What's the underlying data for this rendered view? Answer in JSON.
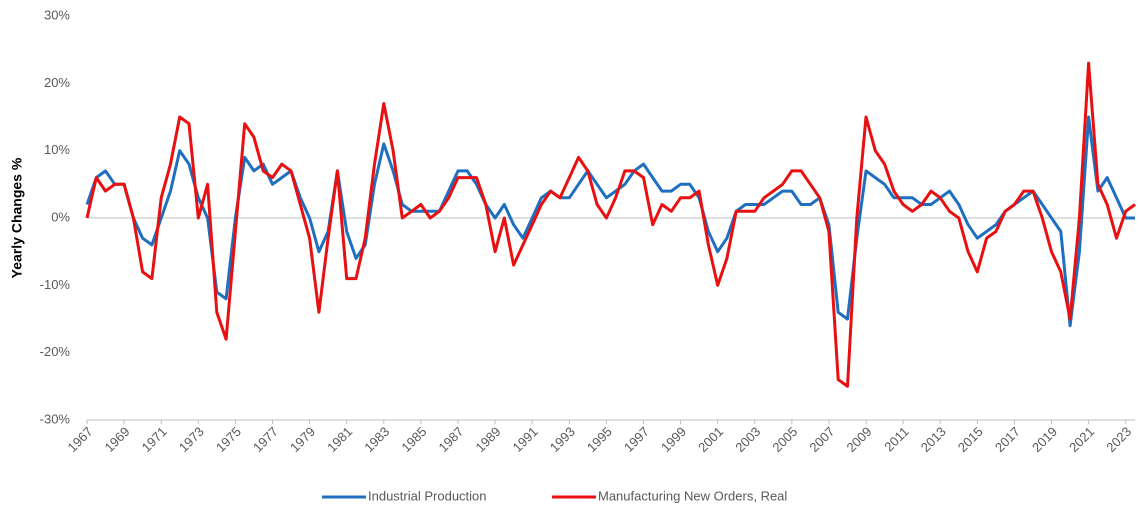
{
  "chart_data": {
    "type": "line",
    "y_label": "Yearly Changes %",
    "x": [
      1967,
      1967.5,
      1968,
      1968.5,
      1969,
      1969.5,
      1970,
      1970.5,
      1971,
      1971.5,
      1972,
      1972.5,
      1973,
      1973.5,
      1974,
      1974.5,
      1975,
      1975.5,
      1976,
      1976.5,
      1977,
      1977.5,
      1978,
      1978.5,
      1979,
      1979.5,
      1980,
      1980.5,
      1981,
      1981.5,
      1982,
      1982.5,
      1983,
      1983.5,
      1984,
      1984.5,
      1985,
      1985.5,
      1986,
      1986.5,
      1987,
      1987.5,
      1988,
      1988.5,
      1989,
      1989.5,
      1990,
      1990.5,
      1991,
      1991.5,
      1992,
      1992.5,
      1993,
      1993.5,
      1994,
      1994.5,
      1995,
      1995.5,
      1996,
      1996.5,
      1997,
      1997.5,
      1998,
      1998.5,
      1999,
      1999.5,
      2000,
      2000.5,
      2001,
      2001.5,
      2002,
      2002.5,
      2003,
      2003.5,
      2004,
      2004.5,
      2005,
      2005.5,
      2006,
      2006.5,
      2007,
      2007.5,
      2008,
      2008.5,
      2009,
      2009.5,
      2010,
      2010.5,
      2011,
      2011.5,
      2012,
      2012.5,
      2013,
      2013.5,
      2014,
      2014.5,
      2015,
      2015.5,
      2016,
      2016.5,
      2017,
      2017.5,
      2018,
      2018.5,
      2019,
      2019.5,
      2020,
      2020.5,
      2021,
      2021.5,
      2022,
      2022.5,
      2023,
      2023.5
    ],
    "series": [
      {
        "name": "Industrial Production",
        "color": "#1f6fc0",
        "values": [
          2,
          6,
          7,
          5,
          5,
          0,
          -3,
          -4,
          0,
          4,
          10,
          8,
          3,
          0,
          -11,
          -12,
          0,
          9,
          7,
          8,
          5,
          6,
          7,
          3,
          0,
          -5,
          -2,
          7,
          -2,
          -6,
          -4,
          5,
          11,
          7,
          2,
          1,
          1,
          1,
          1,
          4,
          7,
          7,
          5,
          2,
          0,
          2,
          -1,
          -3,
          0,
          3,
          4,
          3,
          3,
          5,
          7,
          5,
          3,
          4,
          5,
          7,
          8,
          6,
          4,
          4,
          5,
          5,
          3,
          -2,
          -5,
          -3,
          1,
          2,
          2,
          2,
          3,
          4,
          4,
          2,
          2,
          3,
          -1,
          -14,
          -15,
          -3,
          7,
          6,
          5,
          3,
          3,
          3,
          2,
          2,
          3,
          4,
          2,
          -1,
          -3,
          -2,
          -1,
          1,
          2,
          3,
          4,
          2,
          0,
          -2,
          -16,
          -5,
          15,
          4,
          6,
          3,
          0,
          0
        ]
      },
      {
        "name": "Manufacturing New Orders, Real",
        "color": "#e81010",
        "values": [
          0,
          6,
          4,
          5,
          5,
          0,
          -8,
          -9,
          3,
          8,
          15,
          14,
          0,
          5,
          -14,
          -18,
          -2,
          14,
          12,
          7,
          6,
          8,
          7,
          2,
          -3,
          -14,
          -3,
          7,
          -9,
          -9,
          -3,
          8,
          17,
          10,
          0,
          1,
          2,
          0,
          1,
          3,
          6,
          6,
          6,
          2,
          -5,
          0,
          -7,
          -4,
          -1,
          2,
          4,
          3,
          6,
          9,
          7,
          2,
          0,
          3,
          7,
          7,
          6,
          -1,
          2,
          1,
          3,
          3,
          4,
          -4,
          -10,
          -6,
          1,
          1,
          1,
          3,
          4,
          5,
          7,
          7,
          5,
          3,
          -2,
          -24,
          -25,
          0,
          15,
          10,
          8,
          4,
          2,
          1,
          2,
          4,
          3,
          1,
          0,
          -5,
          -8,
          -3,
          -2,
          1,
          2,
          4,
          4,
          0,
          -5,
          -8,
          -15,
          0,
          23,
          5,
          2,
          -3,
          1,
          2
        ]
      }
    ],
    "xlim": [
      1967,
      2023.5
    ],
    "xticks": [
      1967,
      1969,
      1971,
      1973,
      1975,
      1977,
      1979,
      1981,
      1983,
      1985,
      1987,
      1989,
      1991,
      1993,
      1995,
      1997,
      1999,
      2001,
      2003,
      2005,
      2007,
      2009,
      2011,
      2013,
      2015,
      2017,
      2019,
      2021,
      2023
    ],
    "ylim": [
      -30,
      30
    ],
    "yticks": [
      {
        "value": -30,
        "label": "-30%"
      },
      {
        "value": -20,
        "label": "-20%"
      },
      {
        "value": -10,
        "label": "-10%"
      },
      {
        "value": 0,
        "label": "0%"
      },
      {
        "value": 10,
        "label": "10%"
      },
      {
        "value": 20,
        "label": "20%"
      },
      {
        "value": 30,
        "label": "30%"
      }
    ],
    "grid": false,
    "legend": "bottom"
  }
}
